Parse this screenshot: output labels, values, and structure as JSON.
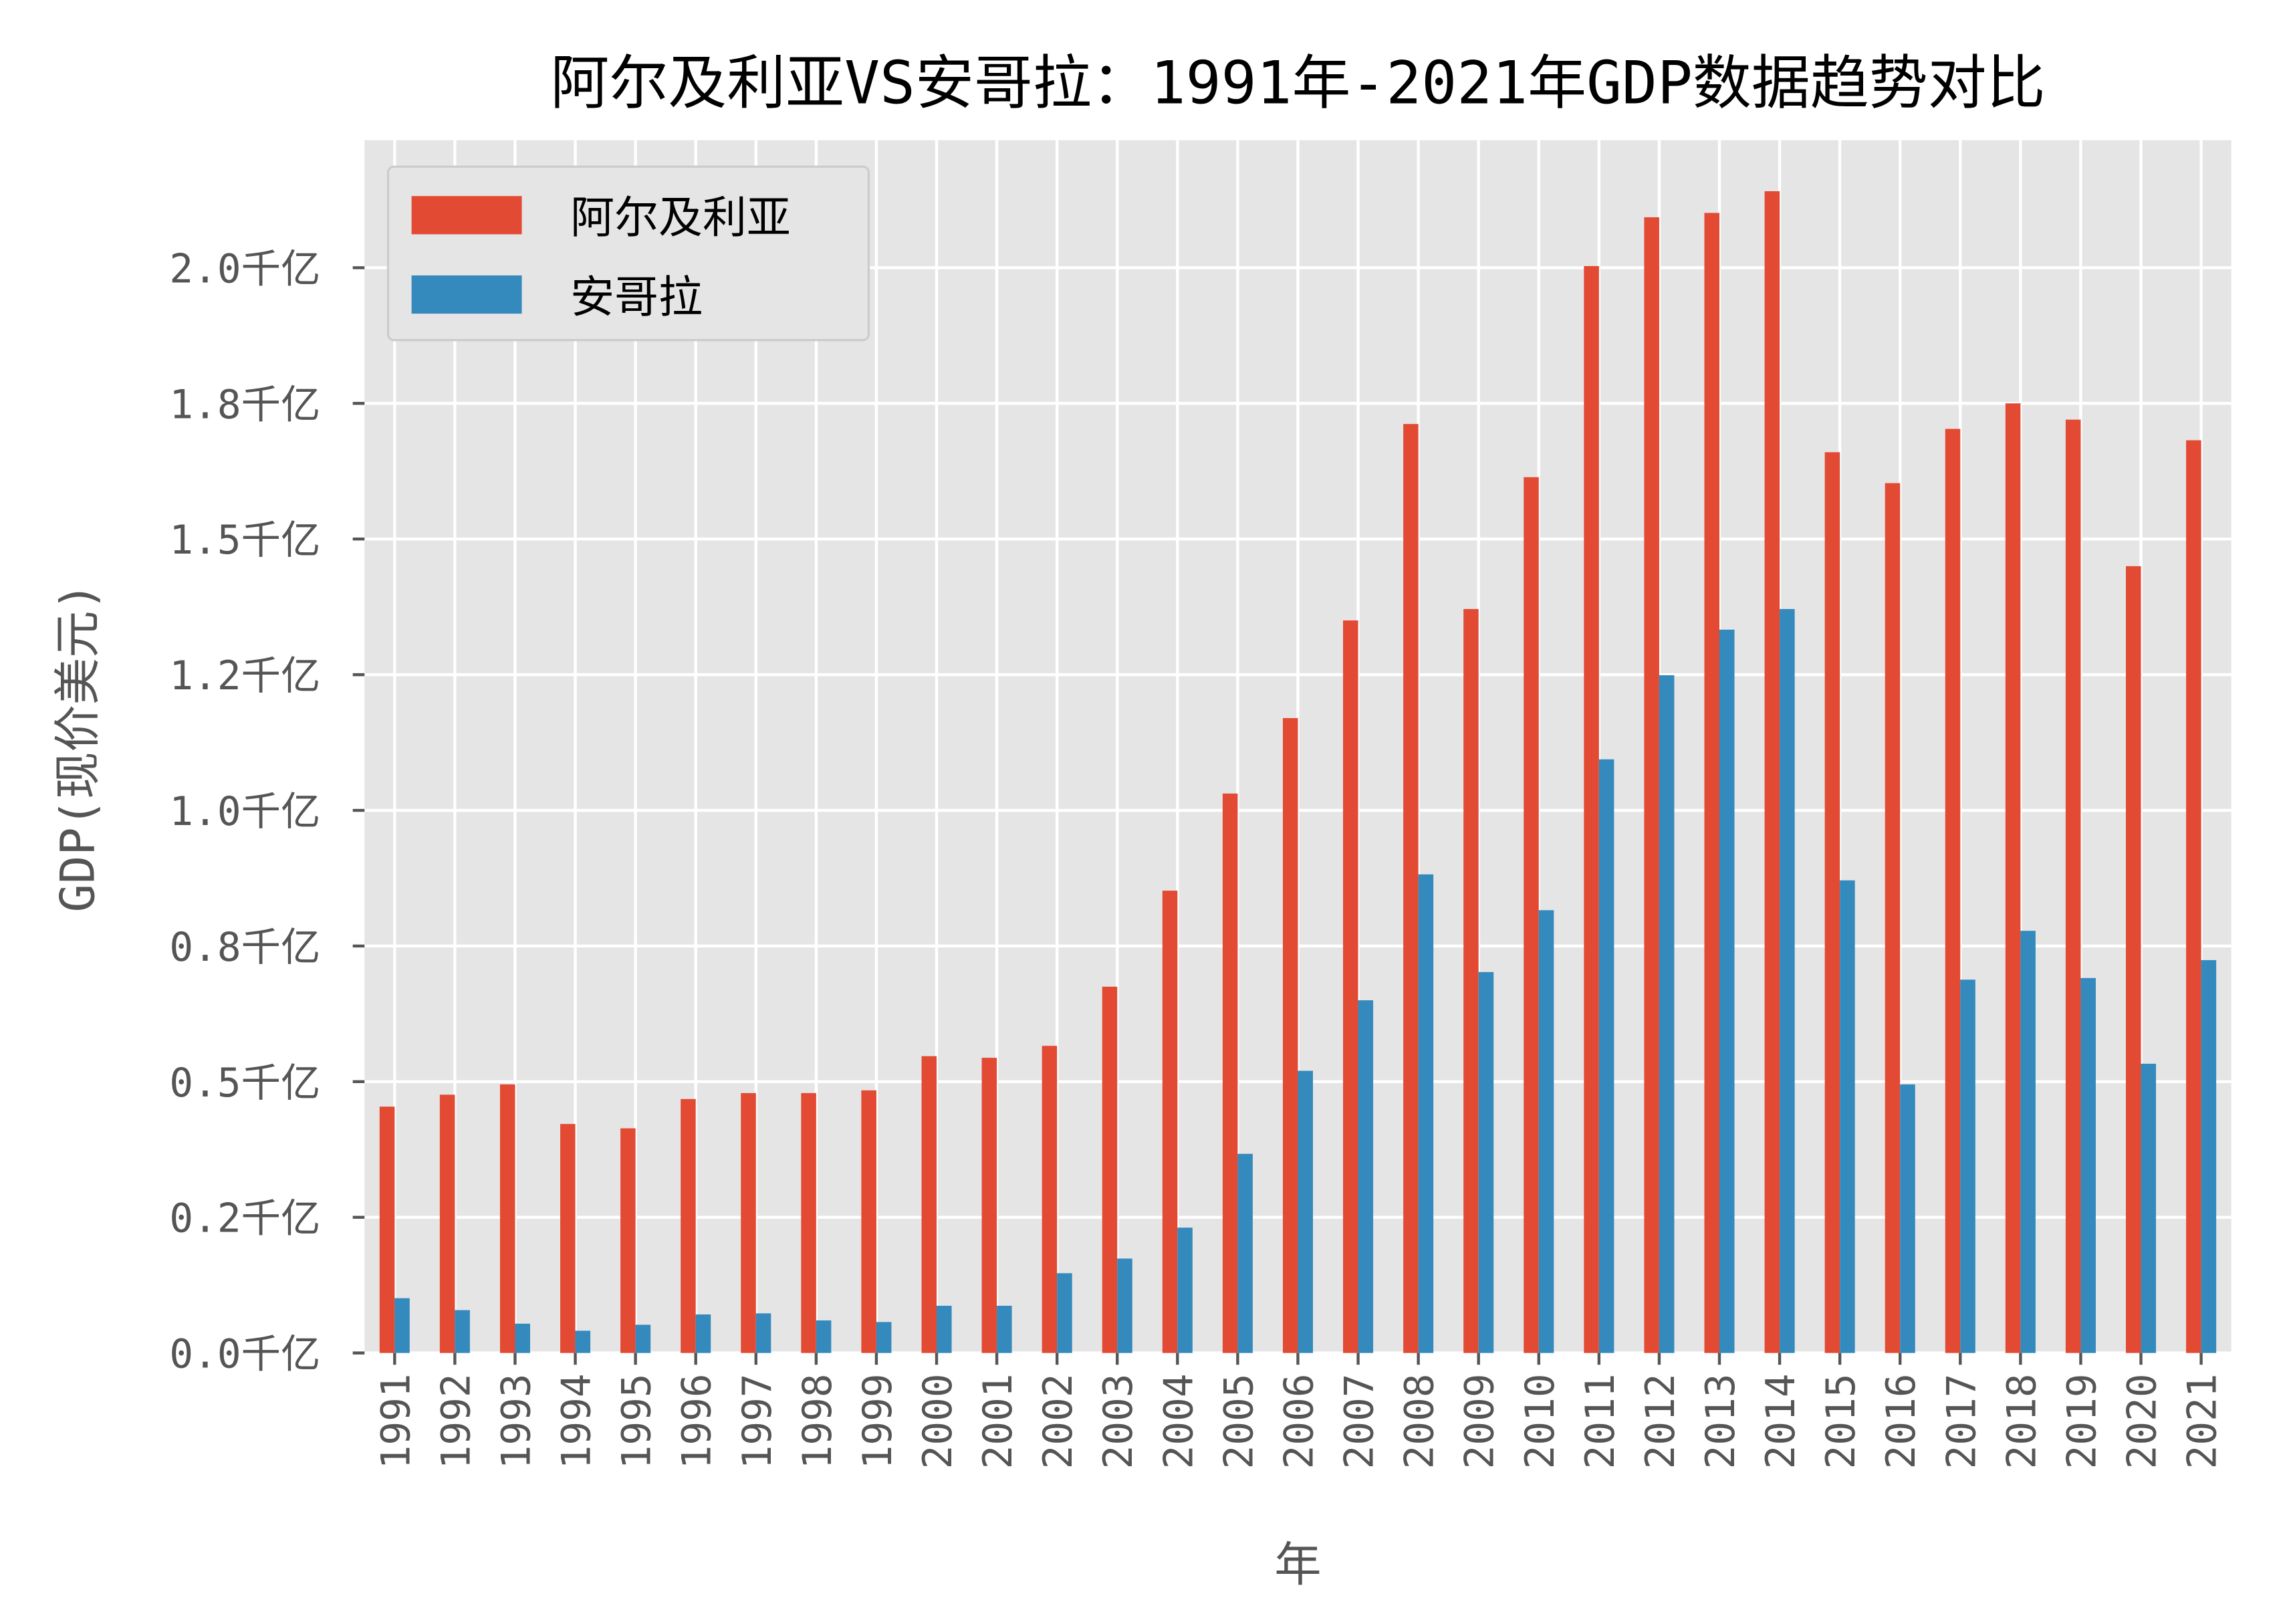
{
  "chart_data": {
    "type": "bar",
    "title": "阿尔及利亚VS安哥拉：1991年-2021年GDP数据趋势对比",
    "xlabel": "年",
    "ylabel": "GDP(现价美元)",
    "categories": [
      "1991",
      "1992",
      "1993",
      "1994",
      "1995",
      "1996",
      "1997",
      "1998",
      "1999",
      "2000",
      "2001",
      "2002",
      "2003",
      "2004",
      "2005",
      "2006",
      "2007",
      "2008",
      "2009",
      "2010",
      "2011",
      "2012",
      "2013",
      "2014",
      "2015",
      "2016",
      "2017",
      "2018",
      "2019",
      "2020",
      "2021"
    ],
    "series": [
      {
        "name": "阿尔及利亚",
        "color": "#E24A33",
        "values": [
          0.454,
          0.476,
          0.495,
          0.422,
          0.414,
          0.468,
          0.479,
          0.479,
          0.484,
          0.547,
          0.544,
          0.566,
          0.675,
          0.852,
          1.031,
          1.17,
          1.35,
          1.712,
          1.371,
          1.614,
          2.003,
          2.093,
          2.101,
          2.141,
          1.66,
          1.603,
          1.703,
          1.75,
          1.72,
          1.45,
          1.682
        ]
      },
      {
        "name": "安哥拉",
        "color": "#348ABD",
        "values": [
          0.101,
          0.079,
          0.054,
          0.041,
          0.052,
          0.071,
          0.073,
          0.06,
          0.057,
          0.087,
          0.087,
          0.147,
          0.174,
          0.231,
          0.367,
          0.52,
          0.65,
          0.882,
          0.702,
          0.816,
          1.094,
          1.249,
          1.333,
          1.371,
          0.871,
          0.495,
          0.688,
          0.778,
          0.691,
          0.533,
          0.724
        ]
      }
    ],
    "unit": "千亿",
    "yticks": [
      0,
      0.25,
      0.5,
      0.75,
      1.0,
      1.25,
      1.5,
      1.75,
      2.0
    ],
    "ytick_labels": [
      "0.0千亿",
      "0.2千亿",
      "0.5千亿",
      "0.8千亿",
      "1.0千亿",
      "1.2千亿",
      "1.5千亿",
      "1.8千亿",
      "2.0千亿"
    ],
    "ylim": [
      0,
      2.235
    ],
    "grid": true,
    "legend_position": "top-left",
    "background": "#E5E5E5"
  }
}
